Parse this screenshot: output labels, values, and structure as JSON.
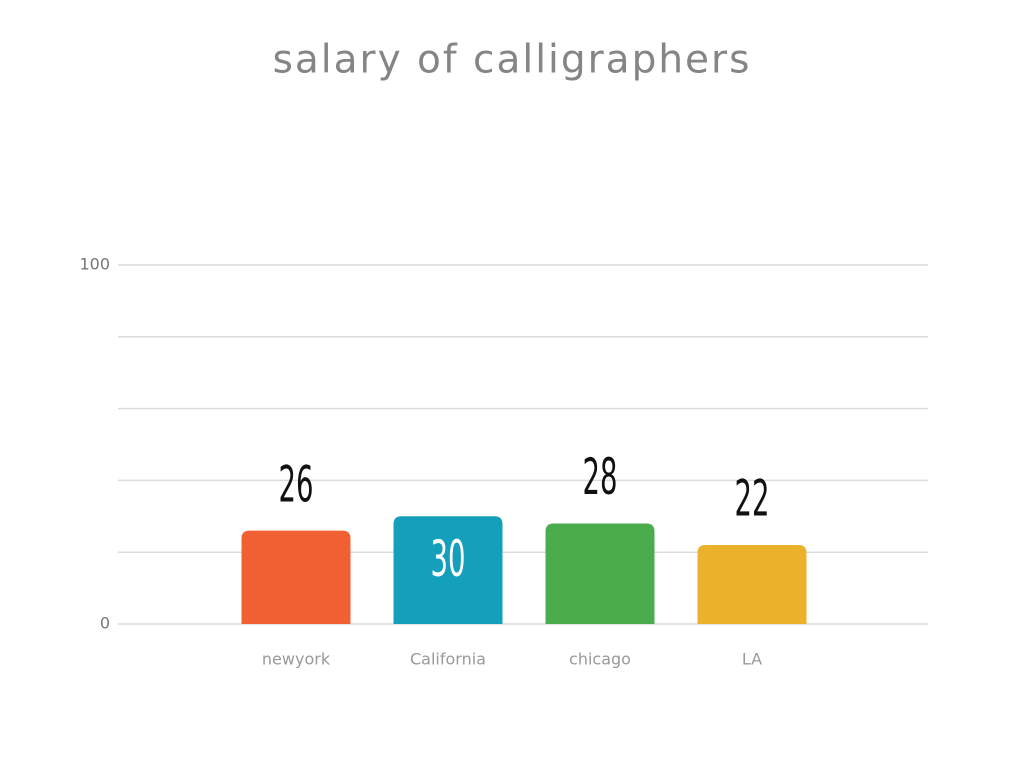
{
  "chart_data": {
    "type": "bar",
    "title": "salary of calligraphers",
    "categories": [
      "newyork",
      "California",
      "chicago",
      "LA"
    ],
    "values": [
      26,
      30,
      28,
      22
    ],
    "colors": [
      "#f06033",
      "#149fba",
      "#4aac4c",
      "#ebb12a"
    ],
    "value_label_inside": [
      false,
      true,
      false,
      false
    ],
    "ylim": [
      0,
      100
    ],
    "yticks": [
      0,
      100
    ],
    "minor_yticks": [
      20,
      40,
      60,
      80
    ],
    "grid": true
  }
}
